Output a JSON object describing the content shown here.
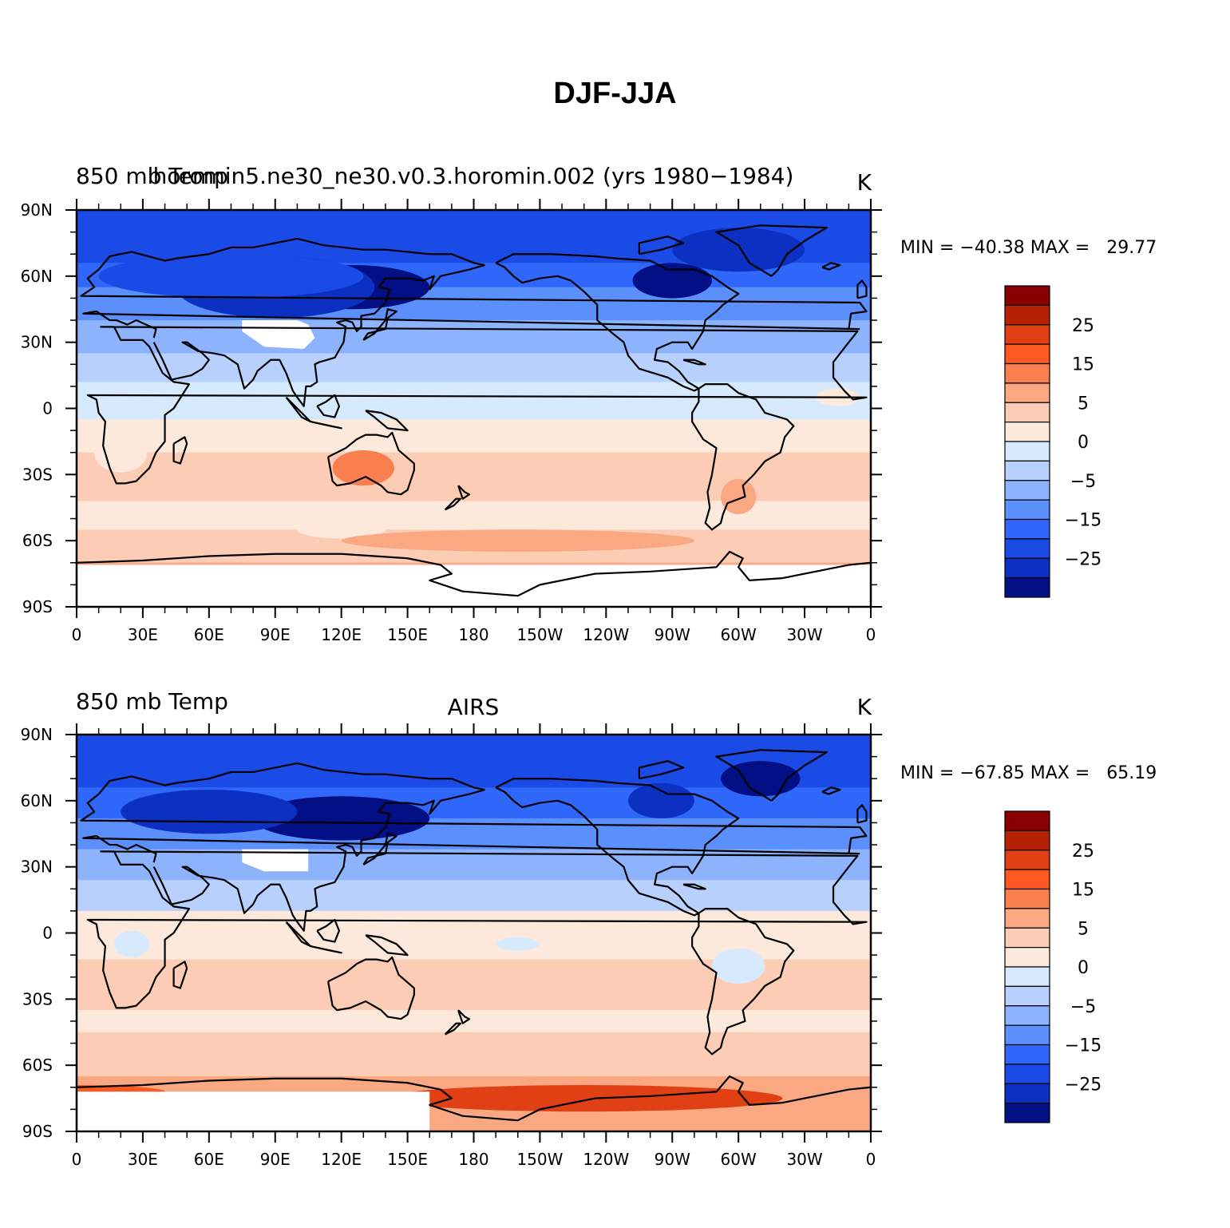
{
  "figure": {
    "title": "DJF-JJA"
  },
  "colorbar": {
    "levels_labeled": [
      "25",
      "15",
      "5",
      "0",
      "−5",
      "−15",
      "−25"
    ],
    "colors": [
      "#8a0000",
      "#b62204",
      "#e13f14",
      "#fc5a22",
      "#fa7f4e",
      "#f9a882",
      "#fccdb4",
      "#fde9db",
      "#d7e9fd",
      "#b7d0fe",
      "#8db3fd",
      "#5b8ffc",
      "#2e67f9",
      "#1a4be6",
      "#0c31c2",
      "#030f84"
    ]
  },
  "x_ticks": [
    "0",
    "30E",
    "60E",
    "90E",
    "120E",
    "150E",
    "180",
    "150W",
    "120W",
    "90W",
    "60W",
    "30W",
    "0"
  ],
  "y_ticks": [
    "90N",
    "60N",
    "30N",
    "0",
    "30S",
    "60S",
    "90S"
  ],
  "panels": [
    {
      "left_title": "850 mb Temp",
      "center_title": "horomin5.ne30_ne30.v0.3.horomin.002 (yrs 1980−1984)",
      "units": "K",
      "stats": "MIN = −40.38 MAX =   29.77",
      "min": -40.38,
      "max": 29.77
    },
    {
      "left_title": "850 mb Temp",
      "center_title": "AIRS",
      "units": "K",
      "stats": "MIN = −67.85 MAX =   65.19",
      "min": -67.85,
      "max": 65.19
    }
  ]
}
